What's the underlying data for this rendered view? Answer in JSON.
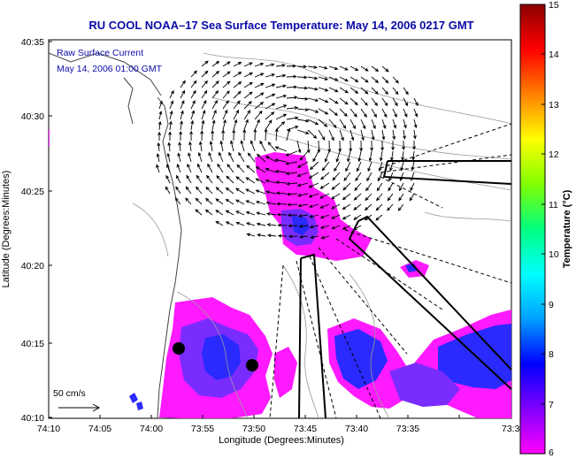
{
  "title": "RU COOL  NOAA–17  Sea Surface Temperature:  May 14, 2006 0217 GMT",
  "annotation": {
    "line1": "Raw Surface Current",
    "line2": "May 14, 2006 01:00 GMT"
  },
  "scale_label": "50 cm/s",
  "x_axis": {
    "label": "Longitude (Degrees:Minutes)",
    "ticks": [
      "74:10",
      "74:05",
      "74:00",
      "73:55",
      "73:50",
      "73:45",
      "73:40",
      "73:35",
      "73:3"
    ]
  },
  "y_axis": {
    "label": "Latitude (Degrees:Minutes)",
    "ticks": [
      "40:35",
      "40:30",
      "40:25",
      "40:20",
      "40:15",
      "40:10"
    ]
  },
  "colorbar": {
    "label": "Temperature (°C)",
    "ticks": [
      "15",
      "14",
      "13",
      "12",
      "11",
      "10",
      "9",
      "8",
      "7",
      "6"
    ],
    "range": [
      6,
      15
    ]
  },
  "colors": {
    "title": "#0a0aa8",
    "sst_cold": "#ff1aff",
    "sst_mid": "#7a2cff",
    "sst_warm": "#1a1aff",
    "coastline": "#555555",
    "contour": "#999999"
  }
}
